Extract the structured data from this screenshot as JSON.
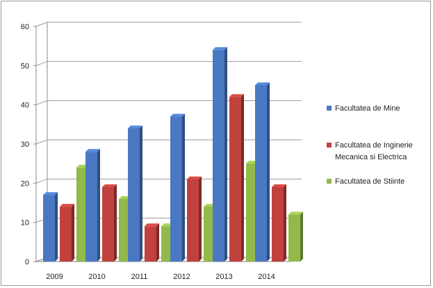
{
  "chart_data": {
    "type": "bar",
    "title": "",
    "xlabel": "",
    "ylabel": "",
    "categories": [
      "2009",
      "2010",
      "2011",
      "2012",
      "2013",
      "2014"
    ],
    "ylim": [
      0,
      60
    ],
    "yticks": [
      "0",
      "10",
      "20",
      "30",
      "40",
      "50",
      "60"
    ],
    "grid": true,
    "style": "3d-columns",
    "legend_position": "right",
    "series": [
      {
        "name": "Facultatea de  Mine",
        "color": "#4a78c2",
        "values": [
          17,
          28,
          34,
          37,
          54,
          45
        ]
      },
      {
        "name": "Facultatea de Inginerie Mecanica si Electrica",
        "color": "#c0413d",
        "values": [
          14,
          19,
          9,
          21,
          42,
          19
        ]
      },
      {
        "name": "Facultatea de Stiinte",
        "color": "#92b94a",
        "values": [
          24,
          16,
          9,
          14,
          25,
          12
        ]
      }
    ]
  }
}
